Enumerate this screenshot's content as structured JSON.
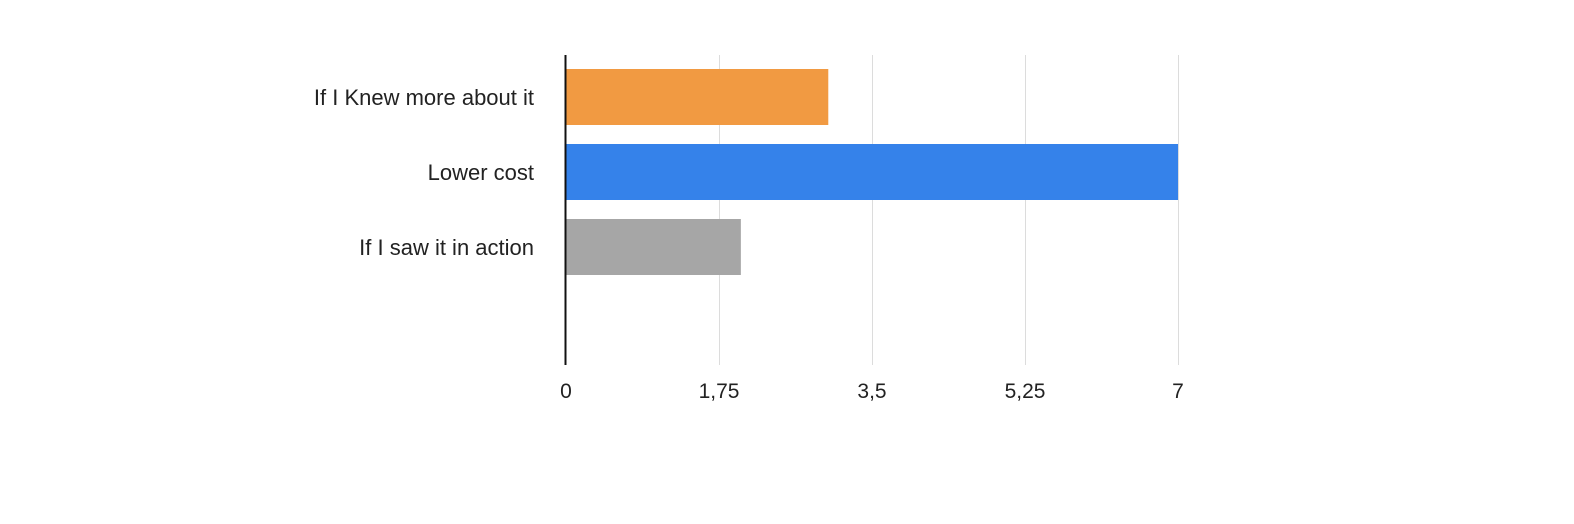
{
  "chart_data": {
    "type": "bar",
    "orientation": "horizontal",
    "title": "",
    "xlabel": "",
    "ylabel": "",
    "categories": [
      "If I Knew more about it",
      "Lower cost",
      "If I saw it in action"
    ],
    "values": [
      3,
      7,
      2
    ],
    "colors": [
      "#f19a42",
      "#3582ea",
      "#a6a6a6"
    ],
    "xlim": [
      0,
      7
    ],
    "xticks": [
      0,
      1.75,
      3.5,
      5.25,
      7
    ],
    "xtick_labels": [
      "0",
      "1,75",
      "3,5",
      "5,25",
      "7"
    ],
    "grid": "vertical",
    "legend": "none"
  }
}
